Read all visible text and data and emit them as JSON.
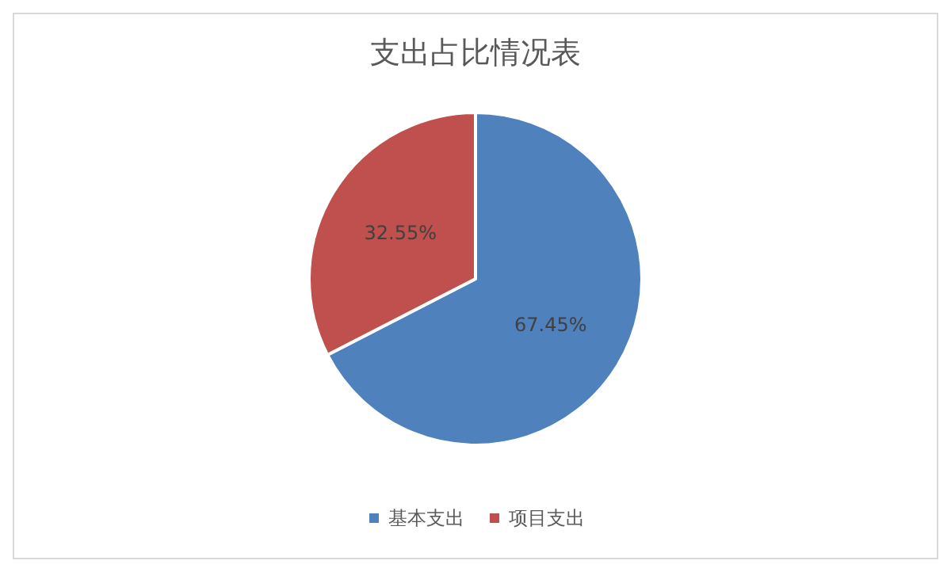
{
  "chart_data": {
    "type": "pie",
    "title": "支出占比情况表",
    "categories": [
      "基本支出",
      "项目支出"
    ],
    "values": [
      67.45,
      32.55
    ],
    "colors": [
      "#4f81bd",
      "#c0504d"
    ],
    "value_labels": [
      "67.45%",
      "32.55%"
    ],
    "legend": "bottom"
  }
}
